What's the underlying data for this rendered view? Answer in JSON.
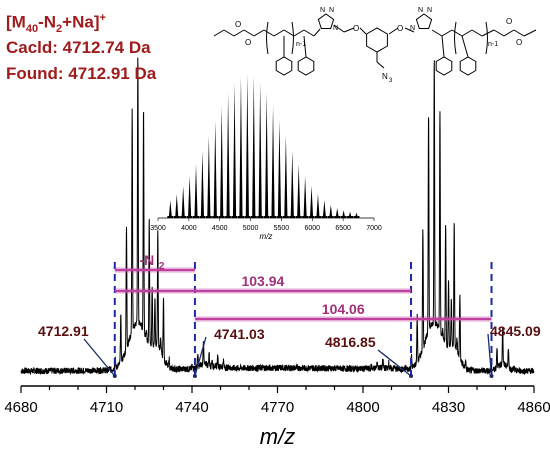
{
  "info": {
    "ion_main": "[M",
    "ion_sub1": "40",
    "ion_mid": "-N",
    "ion_sub2": "2",
    "ion_end": "+Na]",
    "ion_sup": "+",
    "calcd": "Cacld: 4712.74 Da",
    "found": "Found: 4712.91 Da"
  },
  "structure": {
    "n1": "n-1",
    "n2": "n-1",
    "n3": "N",
    "n3_sub": "3",
    "o_label": "O"
  },
  "chart_data": [
    {
      "type": "line",
      "xlabel": "m/z",
      "ylabel": "",
      "xlim": [
        4680,
        4860
      ],
      "xticks": [
        4680,
        4690,
        4700,
        4710,
        4720,
        4730,
        4740,
        4750,
        4760,
        4770,
        4780,
        4790,
        4800,
        4810,
        4820,
        4830,
        4840,
        4850,
        4860
      ],
      "xtick_labels": [
        "4680",
        "4710",
        "4740",
        "4770",
        "4800",
        "4830",
        "4860"
      ],
      "xtick_label_values": [
        4680,
        4710,
        4740,
        4770,
        4800,
        4830,
        4860
      ],
      "peak_labels": [
        {
          "text": "4712.91",
          "x": 4712.91
        },
        {
          "text": "4741.03",
          "x": 4741.03
        },
        {
          "text": "4816.85",
          "x": 4816.85
        },
        {
          "text": "4845.09",
          "x": 4845.09
        }
      ],
      "marker_lines": [
        4712.91,
        4741.03,
        4816.85,
        4845.09
      ],
      "differences": [
        {
          "label": "-N",
          "label_sub": "2",
          "from": 4712.91,
          "to": 4741.03
        },
        {
          "label": "103.94",
          "from": 4712.91,
          "to": 4816.85
        },
        {
          "label": "104.06",
          "from": 4741.03,
          "to": 4845.09
        }
      ],
      "series": [
        {
          "clusters": [
            {
              "center": 4721,
              "height": 1.0,
              "width": 4.5
            },
            {
              "center": 4728,
              "height": 0.42,
              "width": 2.5
            },
            {
              "center": 4744,
              "height": 0.09,
              "width": 2.5
            },
            {
              "center": 4749,
              "height": 0.04,
              "width": 3
            },
            {
              "center": 4807,
              "height": 0.03,
              "width": 4
            },
            {
              "center": 4825,
              "height": 1.0,
              "width": 4.5
            },
            {
              "center": 4832,
              "height": 0.45,
              "width": 2.5
            },
            {
              "center": 4849,
              "height": 0.14,
              "width": 2.5
            }
          ],
          "baseline": 0.0
        }
      ],
      "colors": {
        "line": "#000000",
        "marker": "#1a2aa8",
        "bracket": "#c040a0"
      }
    },
    {
      "type": "bar",
      "xlabel": "m/z",
      "xlim": [
        3500,
        7000
      ],
      "xticks": [
        3500,
        4000,
        4500,
        5000,
        5500,
        6000,
        6500,
        7000
      ],
      "envelope_center": 4950,
      "envelope_width": 820,
      "spacing": 104,
      "range": [
        3700,
        6800
      ]
    }
  ]
}
